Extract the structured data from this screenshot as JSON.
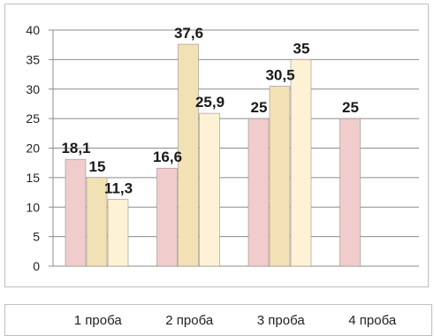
{
  "chart_data": {
    "type": "bar",
    "categories": [
      "1 проба",
      "2 проба",
      "3 проба",
      "4 проба"
    ],
    "series": [
      {
        "values": [
          18.1,
          16.6,
          25,
          25
        ],
        "labels": [
          "18,1",
          "16,6",
          "25",
          "25"
        ],
        "color": "#f0cccc"
      },
      {
        "values": [
          15,
          37.6,
          30.5,
          null
        ],
        "labels": [
          "15",
          "37,6",
          "30,5",
          ""
        ],
        "color": "#f3e1b6"
      },
      {
        "values": [
          11.3,
          25.9,
          35,
          null
        ],
        "labels": [
          "11,3",
          "25,9",
          "35",
          ""
        ],
        "color": "#fdf2d6"
      }
    ],
    "ylim": [
      0,
      40
    ],
    "yticks": [
      "0",
      "5",
      "10",
      "15",
      "20",
      "25",
      "30",
      "35",
      "40"
    ],
    "grid": true,
    "title": "",
    "xlabel": "",
    "ylabel": ""
  }
}
